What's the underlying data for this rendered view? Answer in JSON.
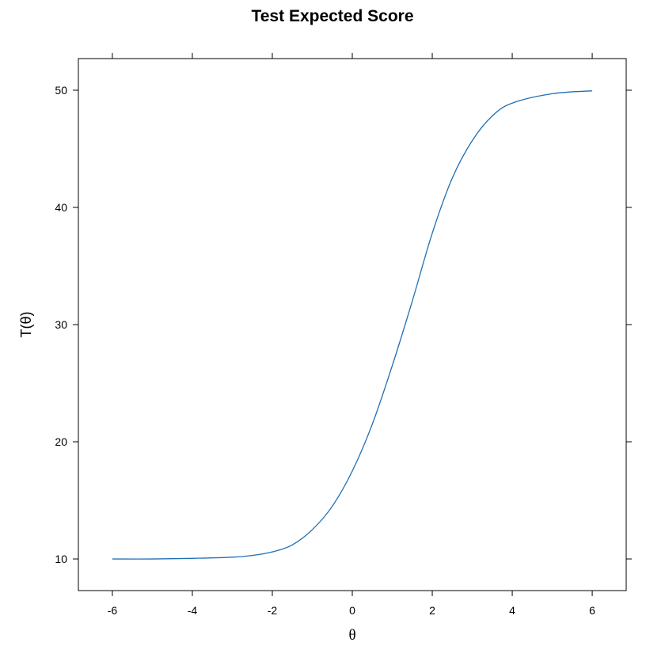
{
  "chart_data": {
    "type": "line",
    "title": "Test Expected Score",
    "xlabel": "θ",
    "ylabel": "T(θ)",
    "xlim": [
      -6.85,
      6.85
    ],
    "ylim": [
      7.3,
      52.7
    ],
    "x_ticks": [
      -6,
      -4,
      -2,
      0,
      2,
      4,
      6
    ],
    "y_ticks": [
      10,
      20,
      30,
      40,
      50
    ],
    "grid": false,
    "legend": "none",
    "colors": {
      "line": "#1f6fb5",
      "axis": "#000000"
    },
    "series": [
      {
        "x": [
          -6,
          -5,
          -4,
          -3,
          -2.5,
          -2,
          -1.5,
          -1,
          -0.5,
          0,
          0.5,
          1,
          1.5,
          2,
          2.5,
          3,
          3.5,
          4,
          5,
          6
        ],
        "y": [
          10.0,
          10.0,
          10.05,
          10.15,
          10.3,
          10.6,
          11.2,
          12.5,
          14.5,
          17.5,
          21.5,
          26.5,
          32.0,
          37.8,
          42.5,
          45.7,
          47.8,
          48.9,
          49.7,
          49.95
        ]
      }
    ]
  }
}
